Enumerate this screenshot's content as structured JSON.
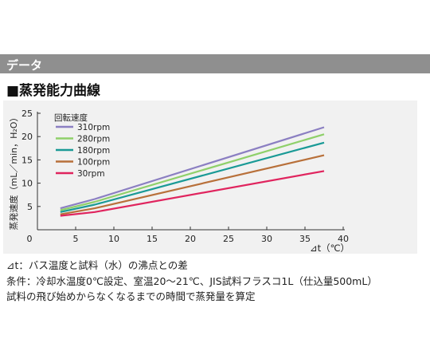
{
  "header": {
    "title": "データ"
  },
  "section": {
    "title": "■蒸発能力曲線"
  },
  "chart_data": {
    "type": "line",
    "title": "",
    "xlabel": "⊿t（℃）",
    "ylabel": "蒸発速度（mL／min，H₂O）",
    "xlim": [
      0,
      40
    ],
    "ylim": [
      0,
      25
    ],
    "xticks": [
      0,
      5,
      10,
      15,
      20,
      25,
      30,
      35,
      40
    ],
    "yticks": [
      5,
      10,
      15,
      20,
      25
    ],
    "grid": false,
    "legend_title": "回転速度",
    "legend_position": "top-left",
    "series": [
      {
        "name": "310rpm",
        "color": "#8b7fc2",
        "x": [
          3,
          7.5,
          37.5
        ],
        "y": [
          4.6,
          6.6,
          22.0
        ]
      },
      {
        "name": "280rpm",
        "color": "#8fd06a",
        "x": [
          3,
          7.5,
          37.5
        ],
        "y": [
          4.2,
          6.0,
          20.5
        ]
      },
      {
        "name": "180rpm",
        "color": "#1a9a96",
        "x": [
          3,
          7.5,
          37.5
        ],
        "y": [
          3.8,
          5.4,
          18.7
        ]
      },
      {
        "name": "100rpm",
        "color": "#b8703a",
        "x": [
          3,
          7.5,
          37.5
        ],
        "y": [
          3.3,
          4.6,
          16.0
        ]
      },
      {
        "name": "30rpm",
        "color": "#e0245e",
        "x": [
          3,
          7.5,
          37.5
        ],
        "y": [
          3.0,
          3.8,
          12.6
        ]
      }
    ]
  },
  "notes": [
    "⊿t：バス温度と試料（水）の沸点との差",
    "条件：冷却水温度0℃設定、室温20～21℃、JIS試料フラスコ1L（仕込量500mL）",
    "試料の飛び始めからなくなるまでの時間で蒸発量を算定"
  ]
}
